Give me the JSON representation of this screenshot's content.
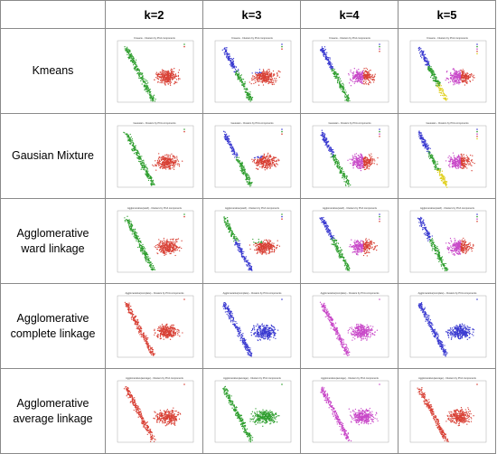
{
  "header": {
    "corner": "",
    "columns": [
      "k=2",
      "k=3",
      "k=4",
      "k=5"
    ]
  },
  "rows": [
    {
      "label_lines": [
        "Kmeans"
      ],
      "panels": [
        {
          "title": "Kmeans - Clusters by PCA components",
          "colors": [
            "#2e9e2e",
            "#d84035"
          ]
        },
        {
          "title": "Kmeans - Clusters by PCA components",
          "colors": [
            "#3a3ad0",
            "#2e9e2e",
            "#d84035"
          ]
        },
        {
          "title": "Kmeans - Clusters by PCA components",
          "colors": [
            "#3a3ad0",
            "#2e9e2e",
            "#c848c8",
            "#d84035"
          ]
        },
        {
          "title": "Kmeans - Clusters by PCA components",
          "colors": [
            "#3a3ad0",
            "#2e9e2e",
            "#c848c8",
            "#d84035",
            "#e0d020"
          ]
        }
      ]
    },
    {
      "label_lines": [
        "Gausian Mixture"
      ],
      "panels": [
        {
          "title": "Gaussian - Clusters by PCA components",
          "colors": [
            "#2e9e2e",
            "#d84035"
          ]
        },
        {
          "title": "Gaussian - Clusters by PCA components",
          "colors": [
            "#3a3ad0",
            "#2e9e2e",
            "#d84035"
          ]
        },
        {
          "title": "Gaussian - Clusters by PCA components",
          "colors": [
            "#3a3ad0",
            "#2e9e2e",
            "#c848c8",
            "#d84035"
          ]
        },
        {
          "title": "Gaussian - Clusters by PCA components",
          "colors": [
            "#3a3ad0",
            "#2e9e2e",
            "#c848c8",
            "#d84035",
            "#e0d020"
          ]
        }
      ]
    },
    {
      "label_lines": [
        "Agglomerative",
        "ward linkage"
      ],
      "panels": [
        {
          "title": "Agglomerative(ward) - Clusters by PCA components",
          "colors": [
            "#2e9e2e",
            "#d84035"
          ]
        },
        {
          "title": "Agglomerative(ward) - Clusters by PCA components",
          "colors": [
            "#2e9e2e",
            "#3a3ad0",
            "#d84035"
          ]
        },
        {
          "title": "Agglomerative(ward) - Clusters by PCA components",
          "colors": [
            "#3a3ad0",
            "#2e9e2e",
            "#c848c8",
            "#d84035"
          ]
        },
        {
          "title": "Agglomerative(ward) - Clusters by PCA components",
          "colors": [
            "#3a3ad0",
            "#2e9e2e",
            "#c848c8",
            "#d84035"
          ]
        }
      ]
    },
    {
      "label_lines": [
        "Agglomerative",
        "complete linkage"
      ],
      "panels": [
        {
          "title": "Agglomerative(complete) - Clusters by PCA components",
          "colors": [
            "#d84035"
          ]
        },
        {
          "title": "Agglomerative(complete) - Clusters by PCA components",
          "colors": [
            "#3a3ad0"
          ]
        },
        {
          "title": "Agglomerative(complete) - Clusters by PCA components",
          "colors": [
            "#c848c8"
          ]
        },
        {
          "title": "Agglomerative(complete) - Clusters by PCA components",
          "colors": [
            "#3a3ad0"
          ]
        }
      ]
    },
    {
      "label_lines": [
        "Agglomerative",
        "average linkage"
      ],
      "panels": [
        {
          "title": "Agglomerative(average) - Clusters by PCA components",
          "colors": [
            "#d84035"
          ]
        },
        {
          "title": "Agglomerative(average) - Clusters by PCA components",
          "colors": [
            "#2e9e2e"
          ]
        },
        {
          "title": "Agglomerative(average) - Clusters by PCA components",
          "colors": [
            "#c848c8"
          ]
        },
        {
          "title": "Agglomerative(average) - Clusters by PCA components",
          "colors": [
            "#d84035"
          ]
        }
      ]
    }
  ],
  "chart_data": {
    "type": "scatter",
    "grid_rows": [
      "Kmeans",
      "Gausian Mixture",
      "Agglomerative ward linkage",
      "Agglomerative complete linkage",
      "Agglomerative average linkage"
    ],
    "grid_columns": [
      "k=2",
      "k=3",
      "k=4",
      "k=5"
    ],
    "panel_count": 20
  }
}
